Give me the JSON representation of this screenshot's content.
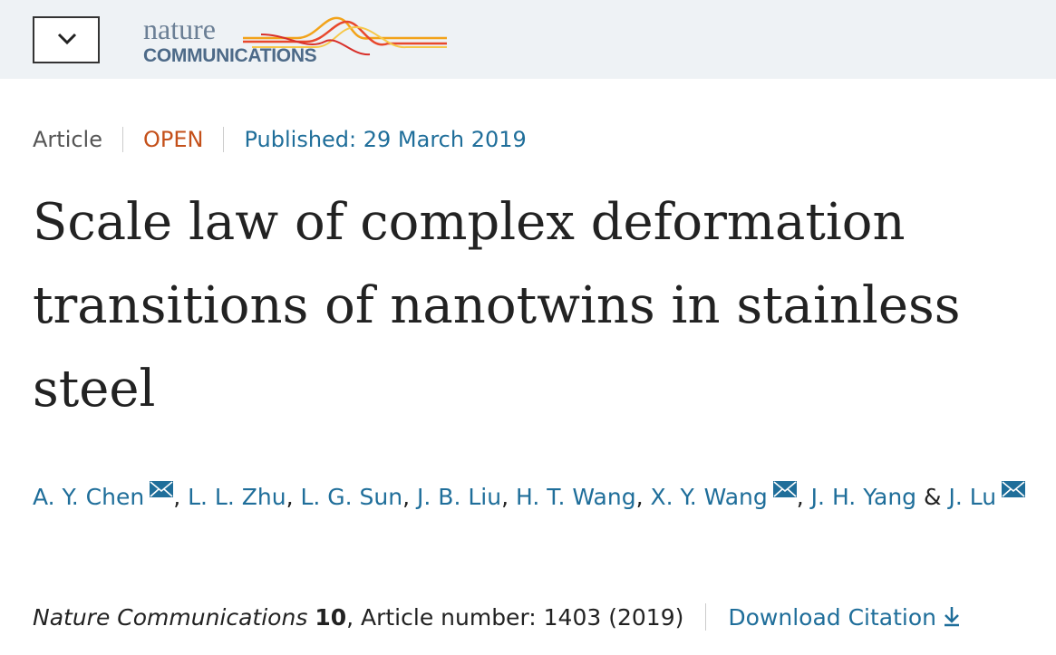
{
  "header": {
    "logo_top": "nature",
    "logo_bottom": "COMMUNICATIONS"
  },
  "meta": {
    "type": "Article",
    "access": "OPEN",
    "published": "Published: 29 March 2019"
  },
  "title": "Scale law of complex deformation transitions of nanotwins in stainless steel",
  "authors": {
    "list": [
      {
        "name": "A. Y. Chen",
        "email": true
      },
      {
        "name": "L. L. Zhu",
        "email": false
      },
      {
        "name": "L. G. Sun",
        "email": false
      },
      {
        "name": "J. B. Liu",
        "email": false
      },
      {
        "name": "H. T. Wang",
        "email": false
      },
      {
        "name": "X. Y. Wang",
        "email": true
      },
      {
        "name": "J. H. Yang",
        "email": false
      },
      {
        "name": "J. Lu",
        "email": true
      }
    ],
    "separator": ",",
    "last_separator": "&"
  },
  "citation": {
    "journal": "Nature Communications",
    "volume": "10",
    "details": ", Article number: 1403 (2019)",
    "download": "Download Citation"
  }
}
